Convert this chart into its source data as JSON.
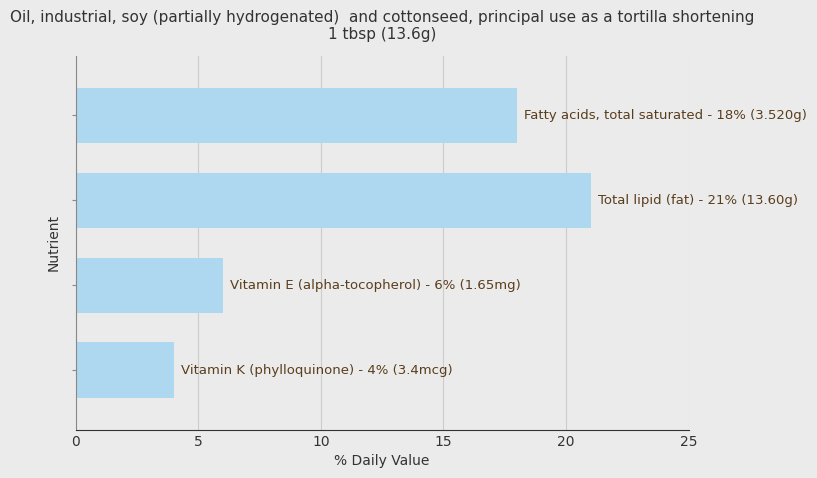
{
  "title": "Oil, industrial, soy (partially hydrogenated)  and cottonseed, principal use as a tortilla shortening\n1 tbsp (13.6g)",
  "nutrients_ordered": [
    "Vitamin K (phylloquinone) - 4% (3.4mcg)",
    "Vitamin E (alpha-tocopherol) - 6% (1.65mg)",
    "Total lipid (fat) - 21% (13.60g)",
    "Fatty acids, total saturated - 18% (3.520g)"
  ],
  "values_ordered": [
    4,
    6,
    21,
    18
  ],
  "bar_color": "#add8f0",
  "text_color": "#5a3e1b",
  "background_color": "#ebebeb",
  "plot_background": "#ebebeb",
  "xlabel": "% Daily Value",
  "ylabel": "Nutrient",
  "xlim": [
    0,
    25
  ],
  "title_fontsize": 11,
  "label_fontsize": 9.5,
  "axis_fontsize": 10,
  "bar_height": 0.65
}
